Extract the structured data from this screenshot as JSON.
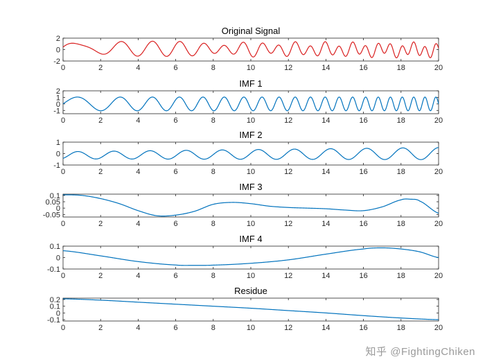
{
  "watermark": "知乎 @FightingChiken",
  "colors": {
    "signal": "#d91e1e",
    "imf": "#0072bd",
    "axes": "#262626"
  },
  "chart_data": [
    {
      "type": "line",
      "title": "Original Signal",
      "xlim": [
        0,
        20
      ],
      "ylim": [
        -2,
        2
      ],
      "xticks": [
        0,
        2,
        4,
        6,
        8,
        10,
        12,
        14,
        16,
        18,
        20
      ],
      "xtick_labels": [
        "0",
        "2",
        "4",
        "6",
        "8",
        "10",
        "12",
        "14",
        "16",
        "18",
        "20"
      ],
      "yticks": [
        2,
        0,
        -2
      ],
      "ytick_labels": [
        "2",
        "0",
        "-2"
      ],
      "color_key": "signal",
      "series": [
        {
          "name": "Original Signal",
          "components": [
            {
              "kind": "chirp",
              "amp": 1.0,
              "f0": 0.3,
              "f1": 1.75
            },
            {
              "kind": "sine",
              "amp": 0.8,
              "freq": 0.65,
              "grow": 0.25,
              "phase": 0.9
            },
            {
              "kind": "linear",
              "start": 0.22,
              "end": -0.1
            }
          ]
        }
      ]
    },
    {
      "type": "line",
      "title": "IMF 1",
      "xlim": [
        0,
        20
      ],
      "ylim": [
        -1.5,
        2
      ],
      "xticks": [
        0,
        2,
        4,
        6,
        8,
        10,
        12,
        14,
        16,
        18,
        20
      ],
      "xtick_labels": [
        "0",
        "2",
        "4",
        "6",
        "8",
        "10",
        "12",
        "14",
        "16",
        "18",
        "20"
      ],
      "yticks": [
        2,
        1,
        0,
        -1
      ],
      "ytick_labels": [
        "2",
        "1",
        "0",
        "-1"
      ],
      "color_key": "imf",
      "series": [
        {
          "name": "IMF 1",
          "components": [
            {
              "kind": "chirp",
              "amp": 1.05,
              "f0": 0.3,
              "f1": 1.75
            }
          ]
        }
      ]
    },
    {
      "type": "line",
      "title": "IMF 2",
      "xlim": [
        0,
        20
      ],
      "ylim": [
        -1,
        1
      ],
      "xticks": [
        0,
        2,
        4,
        6,
        8,
        10,
        12,
        14,
        16,
        18,
        20
      ],
      "xtick_labels": [
        "0",
        "2",
        "4",
        "6",
        "8",
        "10",
        "12",
        "14",
        "16",
        "18",
        "20"
      ],
      "yticks": [
        1,
        0,
        -1
      ],
      "ytick_labels": [
        "1",
        "0",
        "-1"
      ],
      "color_key": "imf",
      "series": [
        {
          "name": "IMF 2",
          "components": [
            {
              "kind": "sine",
              "amp": 0.9,
              "freq": 0.52,
              "grow": 0.3,
              "phase": -1.0,
              "offset": -0.15
            }
          ]
        }
      ]
    },
    {
      "type": "line",
      "title": "IMF 3",
      "xlim": [
        0,
        20
      ],
      "ylim": [
        -0.07,
        0.11
      ],
      "xticks": [
        0,
        2,
        4,
        6,
        8,
        10,
        12,
        14,
        16,
        18,
        20
      ],
      "xtick_labels": [
        "0",
        "2",
        "4",
        "6",
        "8",
        "10",
        "12",
        "14",
        "16",
        "18",
        "20"
      ],
      "yticks": [
        0.1,
        0.05,
        0,
        -0.05
      ],
      "ytick_labels": [
        "0.1",
        "0.05",
        "0",
        "-0.05"
      ],
      "color_key": "imf",
      "series": [
        {
          "name": "IMF 3",
          "points": [
            [
              0,
              0.105
            ],
            [
              1,
              0.1
            ],
            [
              2,
              0.075
            ],
            [
              3,
              0.035
            ],
            [
              4,
              -0.02
            ],
            [
              5,
              -0.06
            ],
            [
              6,
              -0.055
            ],
            [
              7,
              -0.025
            ],
            [
              8,
              0.03
            ],
            [
              9,
              0.045
            ],
            [
              10,
              0.035
            ],
            [
              11,
              0.015
            ],
            [
              12,
              0.005
            ],
            [
              13,
              0.0
            ],
            [
              14,
              -0.005
            ],
            [
              15,
              -0.015
            ],
            [
              16,
              -0.02
            ],
            [
              17,
              0.01
            ],
            [
              18,
              0.065
            ],
            [
              18.5,
              0.07
            ],
            [
              19,
              0.055
            ],
            [
              20,
              -0.04
            ]
          ]
        }
      ]
    },
    {
      "type": "line",
      "title": "IMF 4",
      "xlim": [
        0,
        20
      ],
      "ylim": [
        -0.1,
        0.1
      ],
      "xticks": [
        0,
        2,
        4,
        6,
        8,
        10,
        12,
        14,
        16,
        18,
        20
      ],
      "xtick_labels": [
        "0",
        "2",
        "4",
        "6",
        "8",
        "10",
        "12",
        "14",
        "16",
        "18",
        "20"
      ],
      "yticks": [
        0.1,
        0,
        -0.1
      ],
      "ytick_labels": [
        "0.1",
        "0",
        "-0.1"
      ],
      "color_key": "imf",
      "series": [
        {
          "name": "IMF 4",
          "points": [
            [
              0,
              0.06
            ],
            [
              2,
              0.015
            ],
            [
              4,
              -0.035
            ],
            [
              6,
              -0.065
            ],
            [
              7,
              -0.068
            ],
            [
              8,
              -0.066
            ],
            [
              10,
              -0.05
            ],
            [
              12,
              -0.02
            ],
            [
              14,
              0.03
            ],
            [
              16,
              0.075
            ],
            [
              17,
              0.085
            ],
            [
              18,
              0.075
            ],
            [
              19,
              0.05
            ],
            [
              20,
              0.0
            ]
          ]
        }
      ]
    },
    {
      "type": "line",
      "title": "Residue",
      "xlim": [
        0,
        20
      ],
      "ylim": [
        -0.12,
        0.22
      ],
      "xticks": [
        0,
        2,
        4,
        6,
        8,
        10,
        12,
        14,
        16,
        18,
        20
      ],
      "xtick_labels": [
        "0",
        "2",
        "4",
        "6",
        "8",
        "10",
        "12",
        "14",
        "16",
        "18",
        "20"
      ],
      "yticks": [
        0.2,
        0.1,
        0,
        -0.1
      ],
      "ytick_labels": [
        "0.2",
        "0.1",
        "0",
        "-0.1"
      ],
      "color_key": "imf",
      "series": [
        {
          "name": "Residue",
          "points": [
            [
              0,
              0.21
            ],
            [
              2,
              0.19
            ],
            [
              4,
              0.16
            ],
            [
              6,
              0.13
            ],
            [
              8,
              0.1
            ],
            [
              10,
              0.07
            ],
            [
              12,
              0.035
            ],
            [
              14,
              0.0
            ],
            [
              16,
              -0.04
            ],
            [
              18,
              -0.075
            ],
            [
              20,
              -0.1
            ]
          ]
        }
      ]
    }
  ]
}
